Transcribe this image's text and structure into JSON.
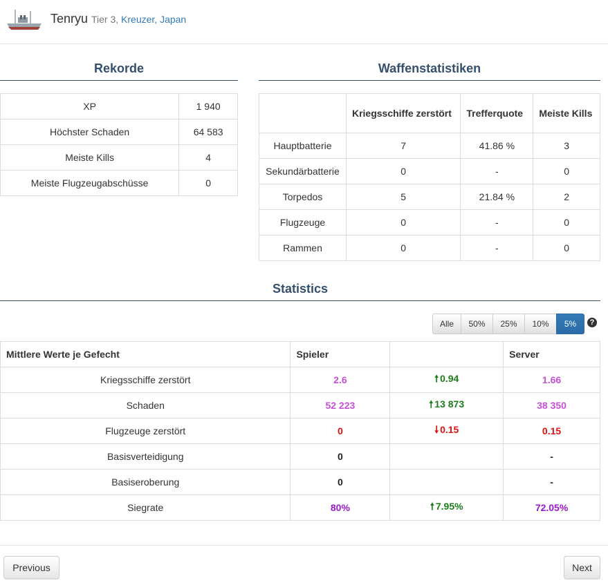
{
  "ship": {
    "name": "Tenryu",
    "tier": "Tier 3,",
    "class": "Kreuzer,",
    "nation": "Japan"
  },
  "records": {
    "title": "Rekorde",
    "rows": [
      {
        "label": "XP",
        "value": "1 940"
      },
      {
        "label": "Höchster Schaden",
        "value": "64 583"
      },
      {
        "label": "Meiste Kills",
        "value": "4"
      },
      {
        "label": "Meiste Flugzeugabschüsse",
        "value": "0"
      }
    ]
  },
  "weapons": {
    "title": "Waffenstatistiken",
    "headers": [
      "",
      "Kriegsschiffe zerstört",
      "Trefferquote",
      "Meiste Kills"
    ],
    "rows": [
      [
        "Hauptbatterie",
        "7",
        "41.86 %",
        "3"
      ],
      [
        "Sekundärbatterie",
        "0",
        "-",
        "0"
      ],
      [
        "Torpedos",
        "5",
        "21.84 %",
        "2"
      ],
      [
        "Flugzeuge",
        "0",
        "-",
        "0"
      ],
      [
        "Rammen",
        "0",
        "-",
        "0"
      ]
    ]
  },
  "statistics": {
    "title": "Statistics",
    "filters": [
      "Alle",
      "50%",
      "25%",
      "10%",
      "5%"
    ],
    "active_filter": "5%",
    "help_icon": "?",
    "headers": [
      "Mittlere Werte je Gefecht",
      "Spieler",
      "",
      "Server"
    ],
    "rows": [
      {
        "label": "Kriegsschiffe zerstört",
        "player": "2.6",
        "diff": "0.94",
        "server": "1.66"
      },
      {
        "label": "Schaden",
        "player": "52 223",
        "diff": "13 873",
        "server": "38 350"
      },
      {
        "label": "Flugzeuge zerstört",
        "player": "0",
        "diff": "0.15",
        "server": "0.15"
      },
      {
        "label": "Basisverteidigung",
        "player": "0",
        "diff": "",
        "server": "-"
      },
      {
        "label": "Basiseroberung",
        "player": "0",
        "diff": "",
        "server": "-"
      },
      {
        "label": "Siegrate",
        "player": "80%",
        "diff": "7.95%",
        "server": "72.05%"
      }
    ]
  },
  "nav": {
    "previous": "Previous",
    "next": "Next"
  },
  "colors": {
    "accent": "#337ab7",
    "title": "#34506c",
    "purple": "#c64fd8",
    "red": "#e01010",
    "green": "#1a7d1a"
  }
}
